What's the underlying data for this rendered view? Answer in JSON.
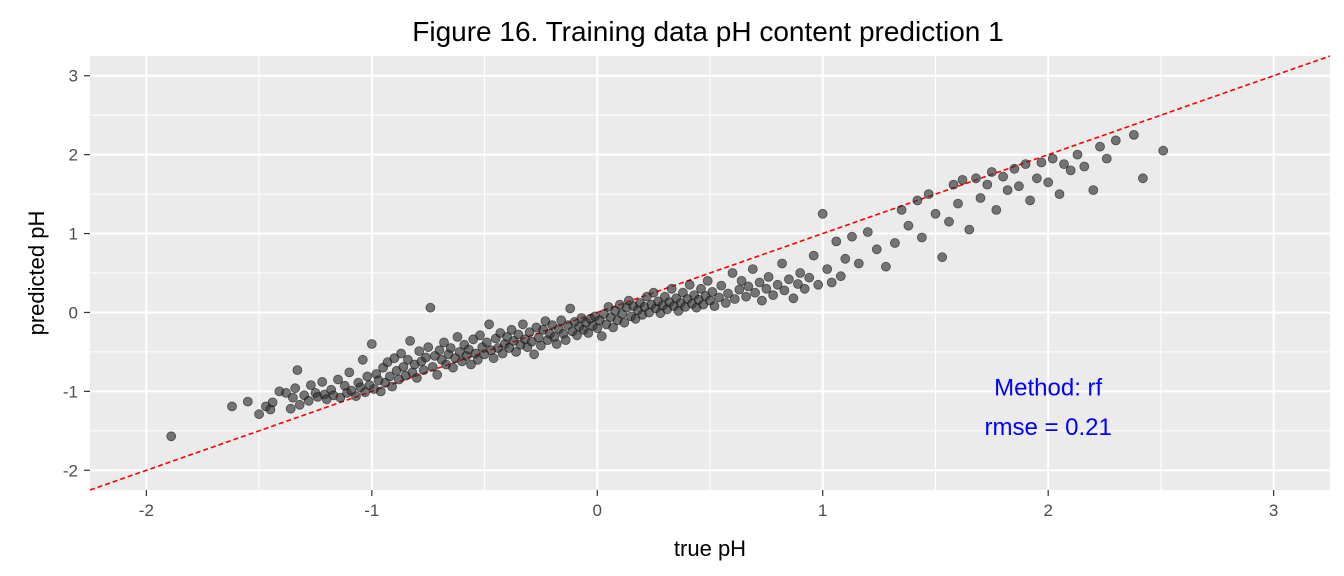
{
  "chart_data": {
    "type": "scatter",
    "title": "Figure 16.  Training data pH content prediction 1",
    "xlabel": "true pH",
    "ylabel": "predicted pH",
    "xlim": [
      -2.25,
      3.25
    ],
    "ylim": [
      -2.25,
      3.25
    ],
    "x_ticks": [
      -2,
      -1,
      0,
      1,
      2,
      3
    ],
    "y_ticks": [
      -2,
      -1,
      0,
      1,
      2,
      3
    ],
    "x_tick_labels": [
      "-2",
      "-1",
      "0",
      "1",
      "2",
      "3"
    ],
    "y_tick_labels": [
      "-2",
      "-1",
      "0",
      "1",
      "2",
      "3"
    ],
    "grid": true,
    "panel_background": "#ebebeb",
    "point_color": "#333333",
    "reference_line": {
      "slope": 1,
      "intercept": 0,
      "color": "#ff0000",
      "style": "dashed"
    },
    "annotations": [
      {
        "text": "Method: rf",
        "x": 2.0,
        "y": -1.05,
        "color": "#0000ff"
      },
      {
        "text": "rmse = 0.21",
        "x": 2.0,
        "y": -1.55,
        "color": "#0000ff"
      }
    ],
    "points": [
      [
        -1.89,
        -1.57
      ],
      [
        -1.62,
        -1.19
      ],
      [
        -1.55,
        -1.13
      ],
      [
        -1.5,
        -1.29
      ],
      [
        -1.47,
        -1.19
      ],
      [
        -1.45,
        -1.23
      ],
      [
        -1.44,
        -1.14
      ],
      [
        -1.41,
        -1.0
      ],
      [
        -1.38,
        -1.02
      ],
      [
        -1.36,
        -1.22
      ],
      [
        -1.35,
        -1.08
      ],
      [
        -1.34,
        -0.96
      ],
      [
        -1.33,
        -0.73
      ],
      [
        -1.32,
        -1.17
      ],
      [
        -1.3,
        -1.05
      ],
      [
        -1.28,
        -1.12
      ],
      [
        -1.27,
        -0.92
      ],
      [
        -1.25,
        -1.02
      ],
      [
        -1.24,
        -1.07
      ],
      [
        -1.22,
        -0.88
      ],
      [
        -1.21,
        -1.04
      ],
      [
        -1.2,
        -1.1
      ],
      [
        -1.18,
        -0.98
      ],
      [
        -1.17,
        -1.05
      ],
      [
        -1.15,
        -0.85
      ],
      [
        -1.14,
        -1.08
      ],
      [
        -1.12,
        -0.93
      ],
      [
        -1.11,
        -1.02
      ],
      [
        -1.1,
        -0.76
      ],
      [
        -1.09,
        -0.99
      ],
      [
        -1.07,
        -1.06
      ],
      [
        -1.06,
        -0.89
      ],
      [
        -1.05,
        -0.95
      ],
      [
        -1.04,
        -0.6
      ],
      [
        -1.03,
        -1.01
      ],
      [
        -1.02,
        -0.81
      ],
      [
        -1.01,
        -0.92
      ],
      [
        -1.0,
        -0.4
      ],
      [
        -0.99,
        -0.97
      ],
      [
        -0.98,
        -0.78
      ],
      [
        -0.97,
        -0.86
      ],
      [
        -0.96,
        -1.0
      ],
      [
        -0.95,
        -0.7
      ],
      [
        -0.94,
        -0.89
      ],
      [
        -0.93,
        -0.63
      ],
      [
        -0.92,
        -0.81
      ],
      [
        -0.91,
        -0.94
      ],
      [
        -0.9,
        -0.58
      ],
      [
        -0.89,
        -0.74
      ],
      [
        -0.88,
        -0.85
      ],
      [
        -0.87,
        -0.52
      ],
      [
        -0.86,
        -0.69
      ],
      [
        -0.85,
        -0.8
      ],
      [
        -0.84,
        -0.6
      ],
      [
        -0.83,
        -0.36
      ],
      [
        -0.82,
        -0.76
      ],
      [
        -0.81,
        -0.66
      ],
      [
        -0.8,
        -0.83
      ],
      [
        -0.79,
        -0.49
      ],
      [
        -0.78,
        -0.62
      ],
      [
        -0.77,
        -0.73
      ],
      [
        -0.76,
        -0.57
      ],
      [
        -0.75,
        -0.44
      ],
      [
        -0.74,
        0.06
      ],
      [
        -0.73,
        -0.69
      ],
      [
        -0.72,
        -0.55
      ],
      [
        -0.71,
        -0.79
      ],
      [
        -0.7,
        -0.48
      ],
      [
        -0.69,
        -0.6
      ],
      [
        -0.68,
        -0.38
      ],
      [
        -0.67,
        -0.66
      ],
      [
        -0.66,
        -0.53
      ],
      [
        -0.65,
        -0.45
      ],
      [
        -0.64,
        -0.7
      ],
      [
        -0.63,
        -0.58
      ],
      [
        -0.62,
        -0.31
      ],
      [
        -0.61,
        -0.5
      ],
      [
        -0.6,
        -0.62
      ],
      [
        -0.59,
        -0.41
      ],
      [
        -0.58,
        -0.55
      ],
      [
        -0.57,
        -0.47
      ],
      [
        -0.56,
        -0.66
      ],
      [
        -0.55,
        -0.34
      ],
      [
        -0.54,
        -0.52
      ],
      [
        -0.53,
        -0.6
      ],
      [
        -0.52,
        -0.29
      ],
      [
        -0.51,
        -0.44
      ],
      [
        -0.5,
        -0.53
      ],
      [
        -0.49,
        -0.38
      ],
      [
        -0.48,
        -0.15
      ],
      [
        -0.47,
        -0.48
      ],
      [
        -0.46,
        -0.58
      ],
      [
        -0.45,
        -0.33
      ],
      [
        -0.44,
        -0.45
      ],
      [
        -0.43,
        -0.26
      ],
      [
        -0.42,
        -0.52
      ],
      [
        -0.41,
        -0.4
      ],
      [
        -0.4,
        -0.31
      ],
      [
        -0.39,
        -0.45
      ],
      [
        -0.38,
        -0.22
      ],
      [
        -0.37,
        -0.36
      ],
      [
        -0.36,
        -0.5
      ],
      [
        -0.35,
        -0.28
      ],
      [
        -0.34,
        -0.41
      ],
      [
        -0.33,
        -0.15
      ],
      [
        -0.32,
        -0.34
      ],
      [
        -0.31,
        -0.44
      ],
      [
        -0.3,
        -0.25
      ],
      [
        -0.29,
        -0.37
      ],
      [
        -0.28,
        -0.53
      ],
      [
        -0.27,
        -0.19
      ],
      [
        -0.26,
        -0.32
      ],
      [
        -0.25,
        -0.42
      ],
      [
        -0.24,
        -0.22
      ],
      [
        -0.23,
        -0.11
      ],
      [
        -0.22,
        -0.35
      ],
      [
        -0.21,
        -0.27
      ],
      [
        -0.2,
        -0.16
      ],
      [
        -0.19,
        -0.31
      ],
      [
        -0.18,
        -0.4
      ],
      [
        -0.17,
        -0.21
      ],
      [
        -0.16,
        -0.1
      ],
      [
        -0.15,
        -0.27
      ],
      [
        -0.14,
        -0.35
      ],
      [
        -0.13,
        -0.16
      ],
      [
        -0.12,
        0.05
      ],
      [
        -0.11,
        -0.24
      ],
      [
        -0.1,
        -0.12
      ],
      [
        -0.09,
        -0.29
      ],
      [
        -0.08,
        -0.18
      ],
      [
        -0.07,
        -0.07
      ],
      [
        -0.06,
        -0.22
      ],
      [
        -0.05,
        -0.13
      ],
      [
        -0.04,
        -0.26
      ],
      [
        -0.03,
        -0.08
      ],
      [
        -0.02,
        -0.17
      ],
      [
        -0.01,
        -0.05
      ],
      [
        0.0,
        -0.2
      ],
      [
        0.01,
        -0.1
      ],
      [
        0.02,
        -0.3
      ],
      [
        0.03,
        -0.02
      ],
      [
        0.04,
        -0.15
      ],
      [
        0.05,
        0.07
      ],
      [
        0.06,
        -0.06
      ],
      [
        0.07,
        -0.19
      ],
      [
        0.08,
        0.02
      ],
      [
        0.09,
        -0.1
      ],
      [
        0.1,
        0.1
      ],
      [
        0.11,
        -0.02
      ],
      [
        0.12,
        -0.13
      ],
      [
        0.13,
        0.06
      ],
      [
        0.14,
        0.15
      ],
      [
        0.15,
        -0.05
      ],
      [
        0.16,
        0.08
      ],
      [
        0.17,
        -0.08
      ],
      [
        0.18,
        0.03
      ],
      [
        0.19,
        0.12
      ],
      [
        0.2,
        -0.03
      ],
      [
        0.21,
        0.07
      ],
      [
        0.22,
        0.2
      ],
      [
        0.23,
        0.0
      ],
      [
        0.24,
        0.1
      ],
      [
        0.25,
        0.25
      ],
      [
        0.26,
        0.05
      ],
      [
        0.27,
        0.14
      ],
      [
        0.28,
        -0.01
      ],
      [
        0.29,
        0.09
      ],
      [
        0.3,
        0.2
      ],
      [
        0.31,
        0.04
      ],
      [
        0.32,
        0.13
      ],
      [
        0.33,
        0.3
      ],
      [
        0.34,
        0.08
      ],
      [
        0.35,
        0.18
      ],
      [
        0.36,
        0.02
      ],
      [
        0.37,
        0.12
      ],
      [
        0.38,
        0.25
      ],
      [
        0.39,
        0.07
      ],
      [
        0.4,
        0.17
      ],
      [
        0.41,
        0.35
      ],
      [
        0.42,
        0.11
      ],
      [
        0.43,
        0.22
      ],
      [
        0.44,
        0.06
      ],
      [
        0.45,
        0.16
      ],
      [
        0.46,
        0.3
      ],
      [
        0.47,
        0.1
      ],
      [
        0.48,
        0.21
      ],
      [
        0.49,
        0.4
      ],
      [
        0.5,
        0.15
      ],
      [
        0.51,
        0.26
      ],
      [
        0.52,
        0.08
      ],
      [
        0.54,
        0.19
      ],
      [
        0.55,
        0.34
      ],
      [
        0.57,
        0.12
      ],
      [
        0.58,
        0.24
      ],
      [
        0.6,
        0.5
      ],
      [
        0.61,
        0.17
      ],
      [
        0.63,
        0.29
      ],
      [
        0.64,
        0.4
      ],
      [
        0.66,
        0.2
      ],
      [
        0.67,
        0.33
      ],
      [
        0.69,
        0.55
      ],
      [
        0.7,
        0.25
      ],
      [
        0.72,
        0.38
      ],
      [
        0.73,
        0.15
      ],
      [
        0.75,
        0.3
      ],
      [
        0.76,
        0.45
      ],
      [
        0.78,
        0.22
      ],
      [
        0.8,
        0.35
      ],
      [
        0.82,
        0.62
      ],
      [
        0.83,
        0.28
      ],
      [
        0.85,
        0.42
      ],
      [
        0.87,
        0.18
      ],
      [
        0.89,
        0.36
      ],
      [
        0.9,
        0.5
      ],
      [
        0.92,
        0.3
      ],
      [
        0.94,
        0.44
      ],
      [
        0.96,
        0.72
      ],
      [
        0.98,
        0.35
      ],
      [
        1.0,
        1.25
      ],
      [
        1.02,
        0.55
      ],
      [
        1.04,
        0.38
      ],
      [
        1.06,
        0.9
      ],
      [
        1.08,
        0.46
      ],
      [
        1.1,
        0.68
      ],
      [
        1.13,
        0.96
      ],
      [
        1.16,
        0.62
      ],
      [
        1.2,
        1.02
      ],
      [
        1.24,
        0.8
      ],
      [
        1.28,
        0.58
      ],
      [
        1.32,
        0.88
      ],
      [
        1.35,
        1.3
      ],
      [
        1.38,
        1.1
      ],
      [
        1.42,
        1.42
      ],
      [
        1.44,
        0.95
      ],
      [
        1.47,
        1.5
      ],
      [
        1.5,
        1.25
      ],
      [
        1.53,
        0.7
      ],
      [
        1.56,
        1.15
      ],
      [
        1.58,
        1.62
      ],
      [
        1.6,
        1.38
      ],
      [
        1.62,
        1.68
      ],
      [
        1.65,
        1.05
      ],
      [
        1.68,
        1.7
      ],
      [
        1.7,
        1.45
      ],
      [
        1.73,
        1.62
      ],
      [
        1.75,
        1.78
      ],
      [
        1.77,
        1.3
      ],
      [
        1.8,
        1.72
      ],
      [
        1.82,
        1.55
      ],
      [
        1.85,
        1.82
      ],
      [
        1.87,
        1.6
      ],
      [
        1.9,
        1.88
      ],
      [
        1.92,
        1.42
      ],
      [
        1.95,
        1.7
      ],
      [
        1.97,
        1.9
      ],
      [
        2.0,
        1.65
      ],
      [
        2.02,
        1.95
      ],
      [
        2.05,
        1.5
      ],
      [
        2.07,
        1.88
      ],
      [
        2.1,
        1.8
      ],
      [
        2.13,
        2.0
      ],
      [
        2.16,
        1.85
      ],
      [
        2.2,
        1.55
      ],
      [
        2.23,
        2.1
      ],
      [
        2.26,
        1.95
      ],
      [
        2.3,
        2.18
      ],
      [
        2.38,
        2.25
      ],
      [
        2.42,
        1.7
      ],
      [
        2.51,
        2.05
      ]
    ]
  }
}
